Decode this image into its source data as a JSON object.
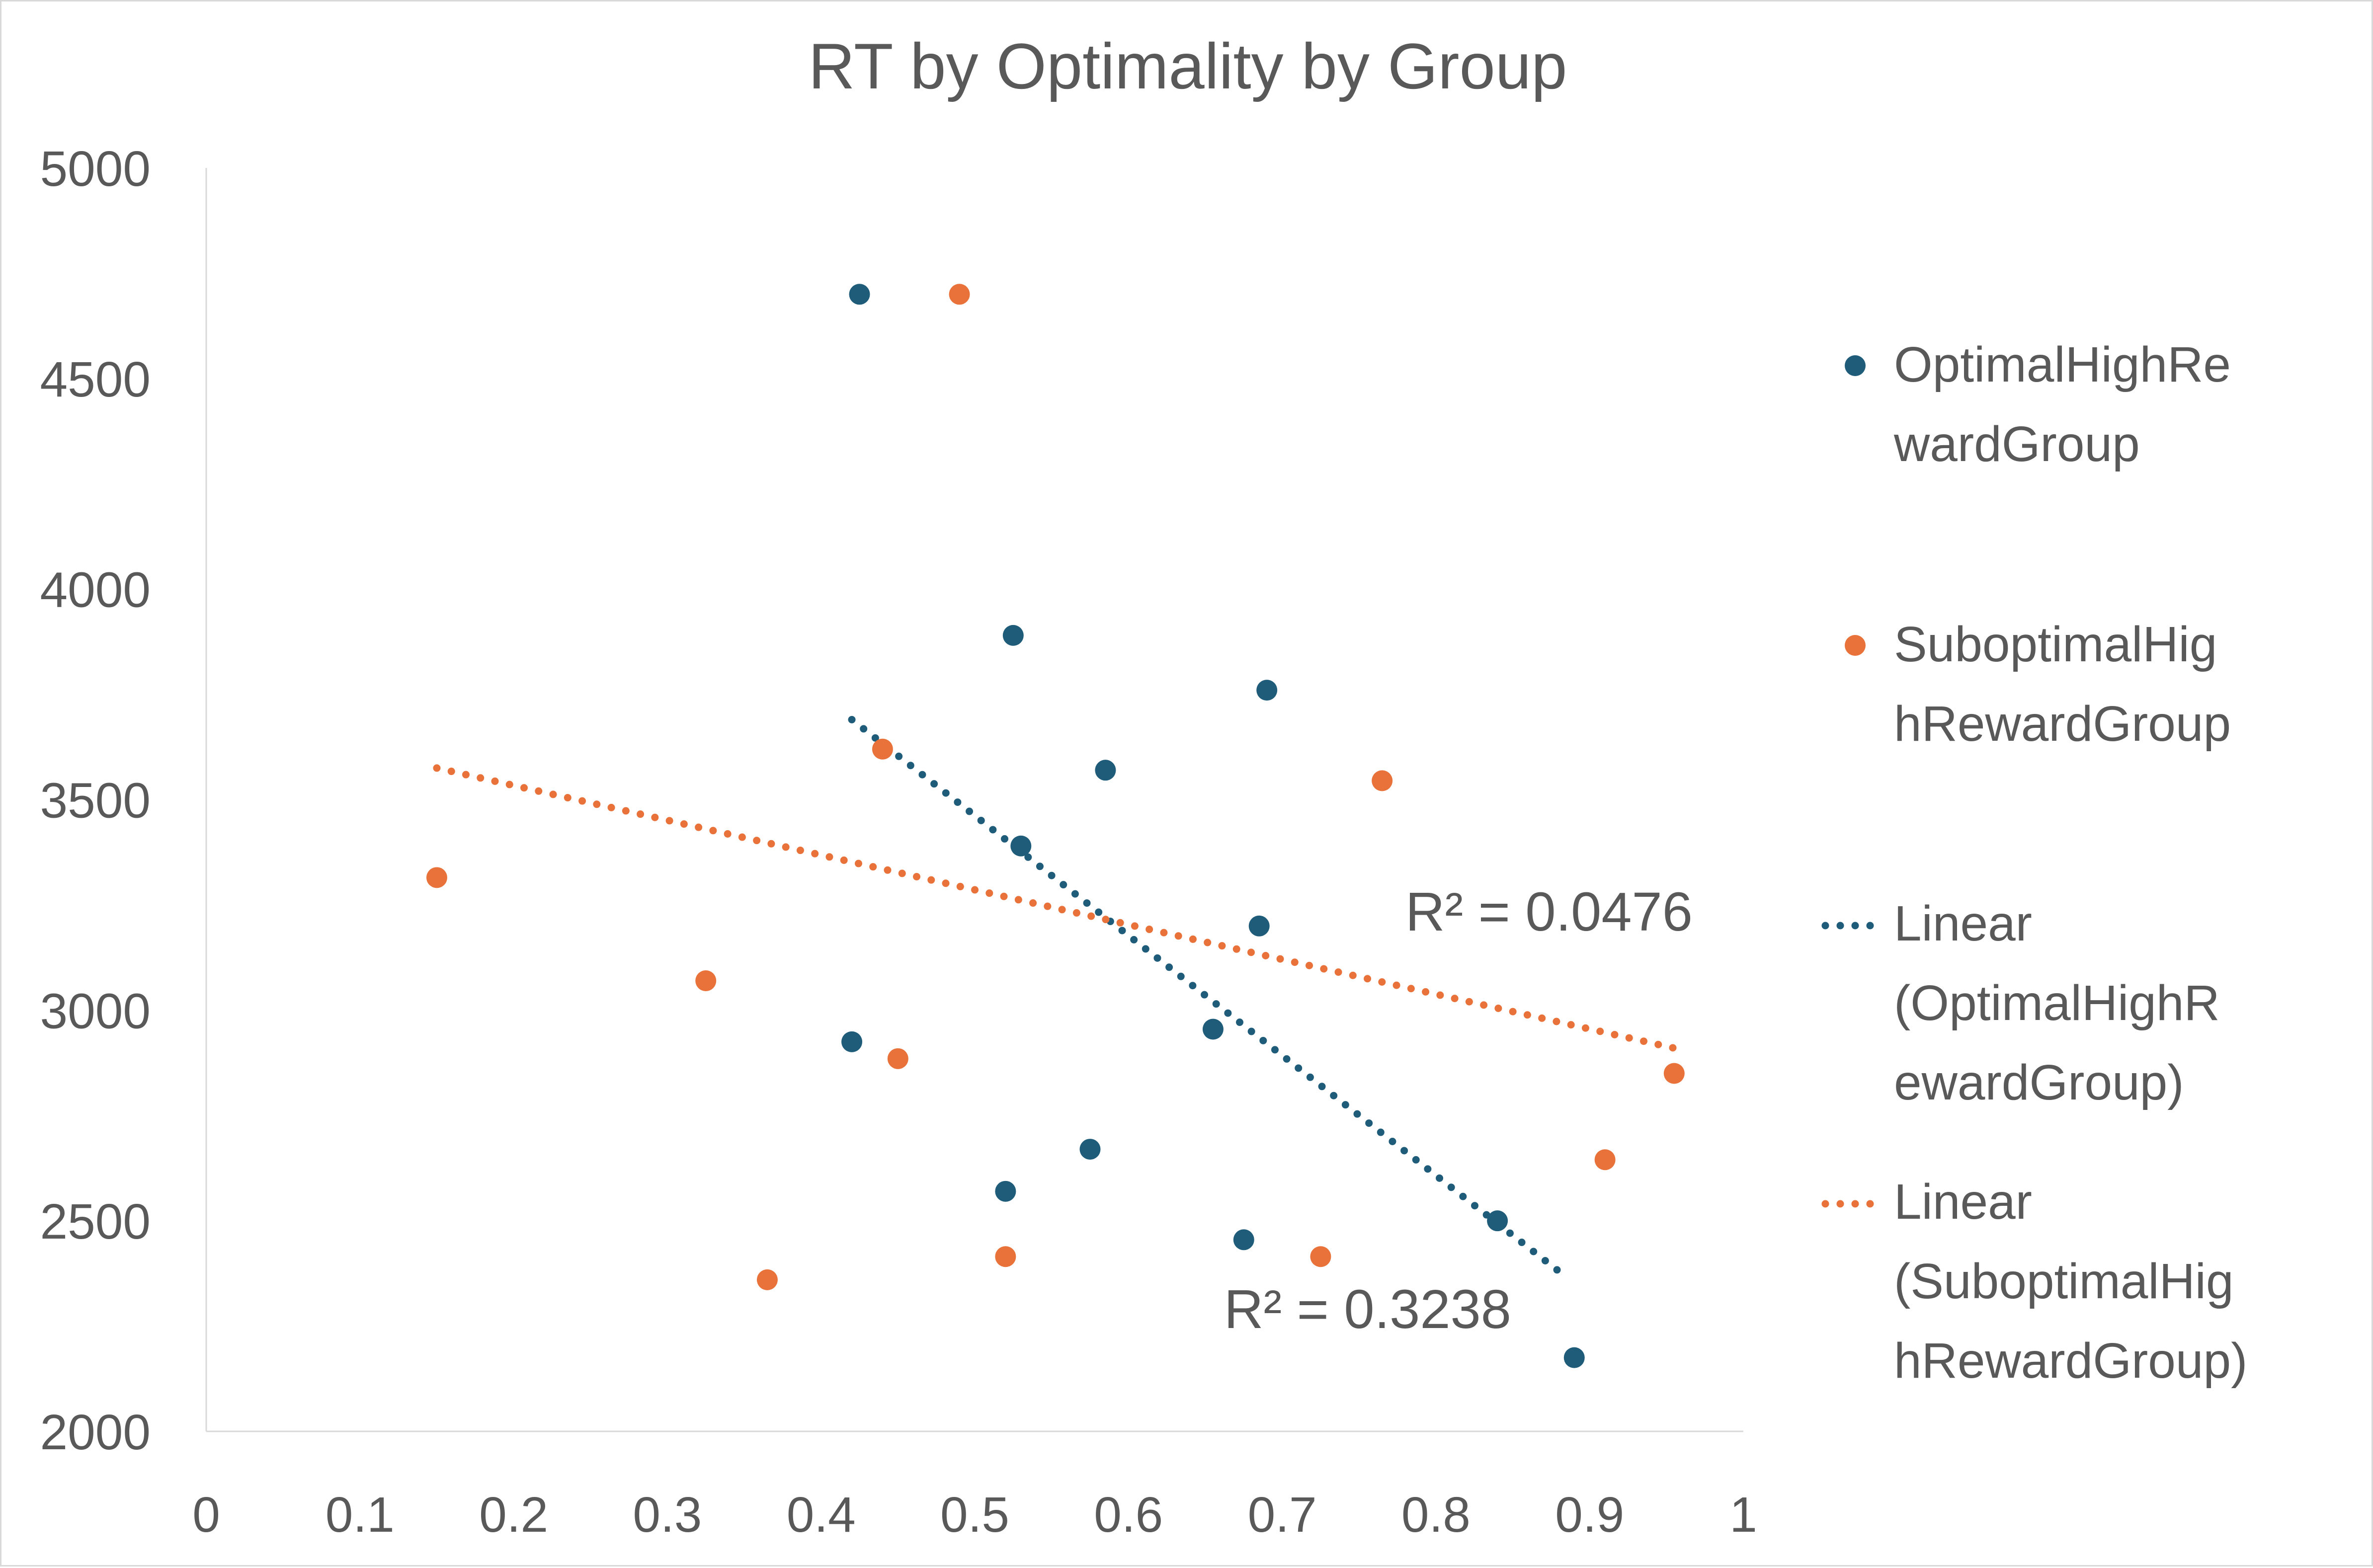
{
  "chart_data": {
    "type": "scatter",
    "title": "RT by Optimality by Group",
    "xlabel": "",
    "ylabel": "",
    "xlim": [
      0,
      1
    ],
    "ylim": [
      2000,
      5000
    ],
    "x_ticks": [
      "0",
      "0.1",
      "0.2",
      "0.3",
      "0.4",
      "0.5",
      "0.6",
      "0.7",
      "0.8",
      "0.9",
      "1"
    ],
    "y_ticks": [
      "2000",
      "2500",
      "3000",
      "3500",
      "4000",
      "4500",
      "5000"
    ],
    "grid": false,
    "legend_position": "right",
    "series": [
      {
        "name": "OptimalHighRewardGroup",
        "color": "#1f5c7a",
        "points": [
          {
            "x": 0.425,
            "y": 4700
          },
          {
            "x": 0.525,
            "y": 3890
          },
          {
            "x": 0.69,
            "y": 3760
          },
          {
            "x": 0.585,
            "y": 3570
          },
          {
            "x": 0.53,
            "y": 3390
          },
          {
            "x": 0.685,
            "y": 3200
          },
          {
            "x": 0.655,
            "y": 2955
          },
          {
            "x": 0.42,
            "y": 2925
          },
          {
            "x": 0.575,
            "y": 2670
          },
          {
            "x": 0.52,
            "y": 2570
          },
          {
            "x": 0.84,
            "y": 2500
          },
          {
            "x": 0.675,
            "y": 2455
          },
          {
            "x": 0.89,
            "y": 2175
          }
        ]
      },
      {
        "name": "SuboptimalHighRewardGroup",
        "color": "#e8723a",
        "points": [
          {
            "x": 0.49,
            "y": 4700
          },
          {
            "x": 0.44,
            "y": 3620
          },
          {
            "x": 0.765,
            "y": 3545
          },
          {
            "x": 0.15,
            "y": 3315
          },
          {
            "x": 0.325,
            "y": 3070
          },
          {
            "x": 0.45,
            "y": 2885
          },
          {
            "x": 0.955,
            "y": 2850
          },
          {
            "x": 0.91,
            "y": 2645
          },
          {
            "x": 0.52,
            "y": 2415
          },
          {
            "x": 0.725,
            "y": 2415
          },
          {
            "x": 0.365,
            "y": 2360
          }
        ]
      }
    ],
    "trendlines": [
      {
        "name": "Linear (OptimalHighRewardGroup)",
        "color": "#1f5c7a",
        "style": "dotted",
        "x": [
          0.42,
          0.88
        ],
        "y": [
          3690,
          2380
        ],
        "r2_label": "R² = 0.3238"
      },
      {
        "name": "Linear (SuboptimalHighRewardGroup)",
        "color": "#e8723a",
        "style": "dotted",
        "x": [
          0.15,
          0.955
        ],
        "y": [
          3575,
          2910
        ],
        "r2_label": "R² = 0.0476"
      }
    ],
    "legend": [
      {
        "lines": [
          "OptimalHighRe",
          "wardGroup"
        ],
        "marker": "dot",
        "color": "#1f5c7a"
      },
      {
        "lines": [
          "SuboptimalHig",
          "hRewardGroup"
        ],
        "marker": "dot",
        "color": "#e8723a"
      },
      {
        "lines": [
          "Linear",
          "(OptimalHighR",
          "ewardGroup)"
        ],
        "marker": "dotted-line",
        "color": "#1f5c7a"
      },
      {
        "lines": [
          "Linear",
          "(SuboptimalHig",
          "hRewardGroup)"
        ],
        "marker": "dotted-line",
        "color": "#e8723a"
      }
    ]
  }
}
